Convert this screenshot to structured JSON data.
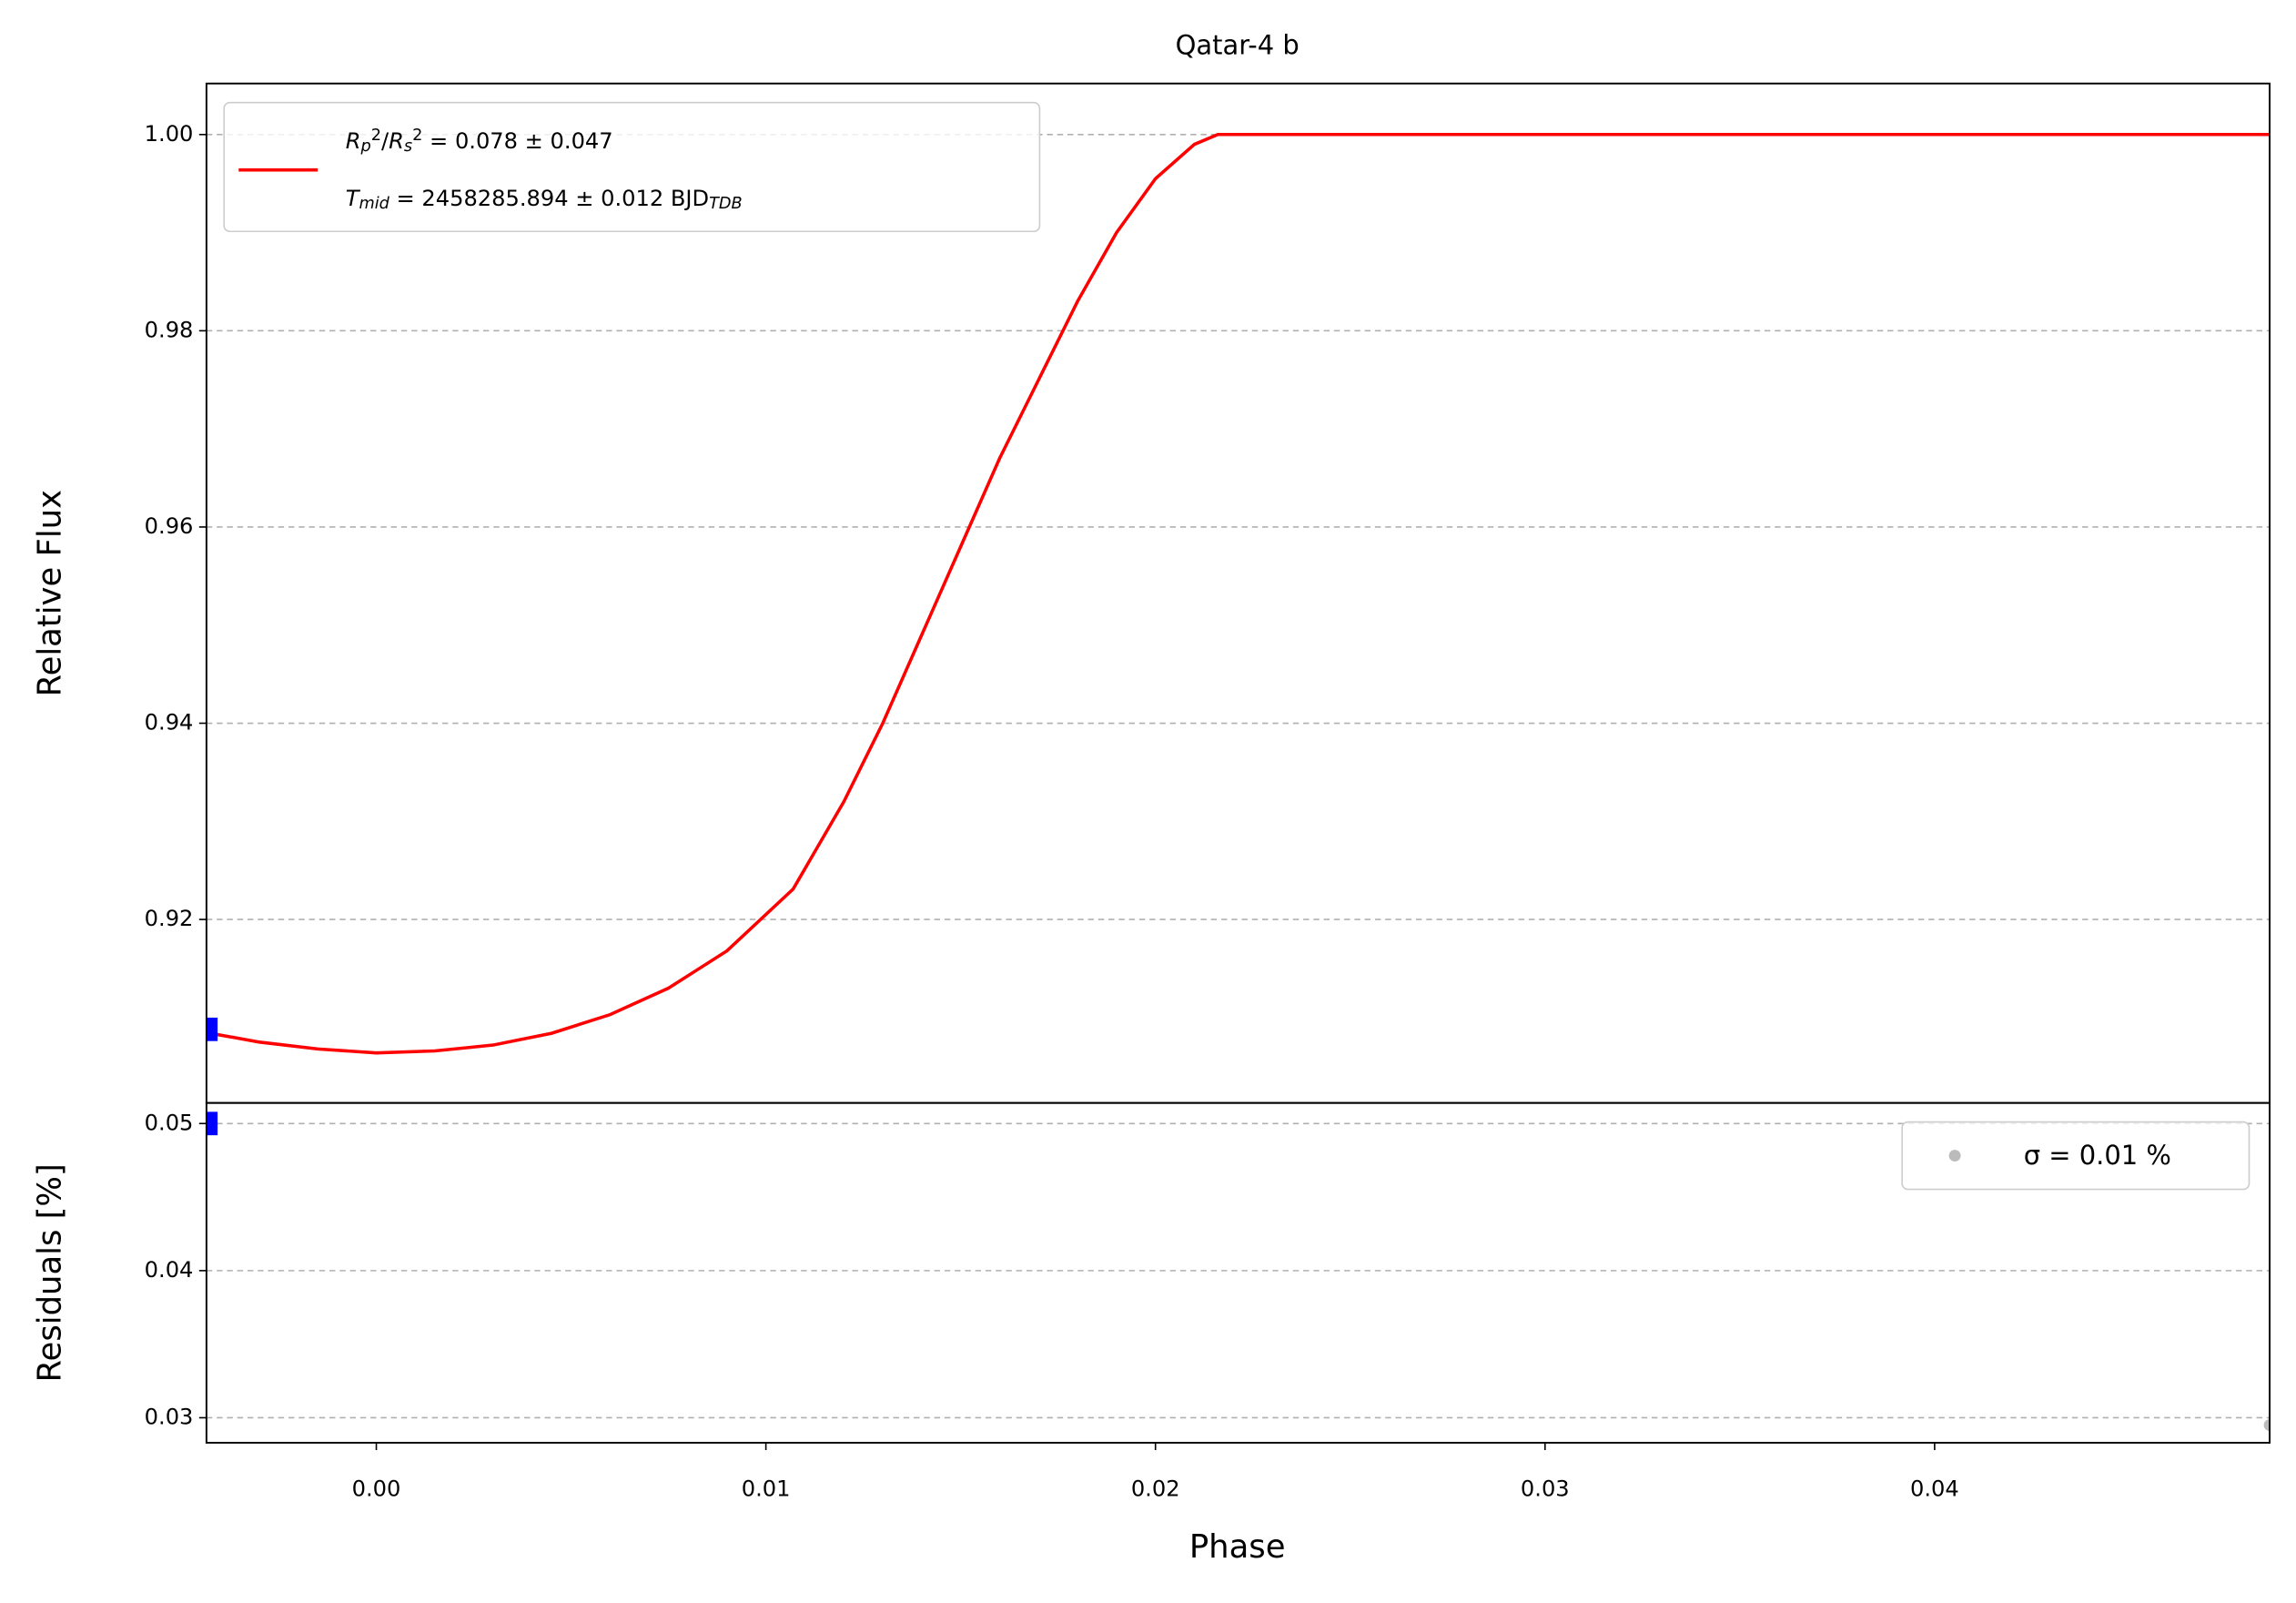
{
  "chart_data": [
    {
      "type": "line",
      "title": "Qatar-4 b",
      "ylabel": "Relative Flux",
      "xlim": [
        -0.00436,
        0.0486
      ],
      "ylim": [
        0.9013,
        1.0052
      ],
      "yticks": [
        0.92,
        0.94,
        0.96,
        0.98,
        {
          "value": 1,
          "label": "1.00"
        }
      ],
      "grid": true,
      "legend": "upper left",
      "series": [
        {
          "type": "line",
          "color": "#ff0000",
          "name": [
            [
              {
                "text": "R",
                "style": "italic"
              },
              {
                "text": "p",
                "style": "sub"
              },
              {
                "text": "2",
                "style": "sup"
              },
              {
                "text": "/",
                "style": "normal"
              },
              {
                "text": "R",
                "style": "italic"
              },
              {
                "text": "s",
                "style": "sub"
              },
              {
                "text": "2",
                "style": "sup"
              },
              {
                "text": " = 0.078 ± 0.047",
                "style": "normal"
              }
            ],
            [
              {
                "text": "T",
                "style": "italic"
              },
              {
                "text": "mid",
                "style": "sub"
              },
              {
                "text": " = 2458285.894 ± 0.012 BJD",
                "style": "normal"
              },
              {
                "text": "TDB",
                "style": "sub"
              }
            ]
          ],
          "x": [
            -0.0044,
            -0.003,
            -0.0015,
            0,
            0.0015,
            0.003,
            0.0045,
            0.006,
            0.0075,
            0.009,
            0.0107,
            0.012,
            0.013,
            0.014,
            0.015,
            0.016,
            0.017,
            0.018,
            0.019,
            0.02,
            0.021,
            0.0216,
            0.0486
          ],
          "values": [
            0.9085,
            0.9075,
            0.9068,
            0.9064,
            0.9066,
            0.9072,
            0.9084,
            0.9103,
            0.913,
            0.9168,
            0.9231,
            0.932,
            0.94,
            0.949,
            0.958,
            0.967,
            0.975,
            0.983,
            0.99,
            0.9955,
            0.999,
            1,
            1
          ]
        },
        {
          "type": "scatter",
          "marker": "square",
          "color": "#0000ff",
          "x": [
            -0.0043
          ],
          "values": [
            0.9088
          ]
        }
      ]
    },
    {
      "type": "scatter",
      "xlabel": "Phase",
      "ylabel": "Residuals [%]",
      "xlim": [
        -0.00436,
        0.0486
      ],
      "ylim": [
        0.0283,
        0.0514
      ],
      "xticks": [
        {
          "value": 0,
          "label": "0.00"
        },
        0.01,
        0.02,
        0.03,
        0.04
      ],
      "yticks": [
        0.03,
        0.04,
        0.05
      ],
      "grid": true,
      "legend": "upper right",
      "series": [
        {
          "type": "scatter",
          "marker": "circle",
          "name": "σ = 0.01 %",
          "color": "#aaaaaa",
          "x": [
            0.0486
          ],
          "values": [
            0.0295
          ]
        },
        {
          "type": "scatter",
          "marker": "square",
          "color": "#0000ff",
          "x": [
            -0.0043
          ],
          "values": [
            0.05
          ]
        }
      ]
    }
  ]
}
